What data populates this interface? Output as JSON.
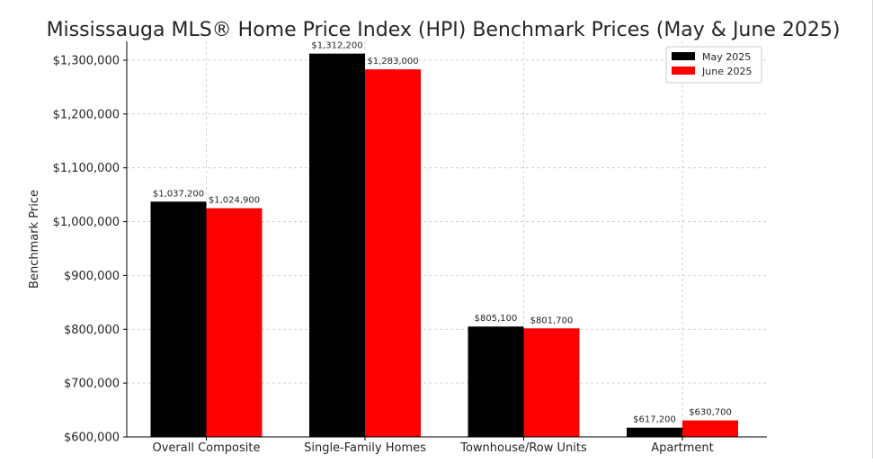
{
  "chart_data": {
    "type": "bar",
    "title": "Mississauga MLS® Home Price Index (HPI) Benchmark Prices (May & June 2025)",
    "xlabel": "",
    "ylabel": "Benchmark Price",
    "categories": [
      "Overall Composite",
      "Single-Family Homes",
      "Townhouse/Row Units",
      "Apartment"
    ],
    "series": [
      {
        "name": "May 2025",
        "color": "#000000",
        "values": [
          1037200,
          1312200,
          805100,
          617200
        ],
        "labels": [
          "$1,037,200",
          "$1,312,200",
          "$805,100",
          "$617,200"
        ]
      },
      {
        "name": "June 2025",
        "color": "#ff0000",
        "values": [
          1024900,
          1283000,
          801700,
          630700
        ],
        "labels": [
          "$1,024,900",
          "$1,283,000",
          "$801,700",
          "$630,700"
        ]
      }
    ],
    "ylim": [
      600000,
      1335000
    ],
    "yticks": [
      600000,
      700000,
      800000,
      900000,
      1000000,
      1100000,
      1200000,
      1300000
    ],
    "ytick_labels": [
      "$600,000",
      "$700,000",
      "$800,000",
      "$900,000",
      "$1,000,000",
      "$1,100,000",
      "$1,200,000",
      "$1,300,000"
    ],
    "grid": true,
    "legend_position": "top-right"
  }
}
